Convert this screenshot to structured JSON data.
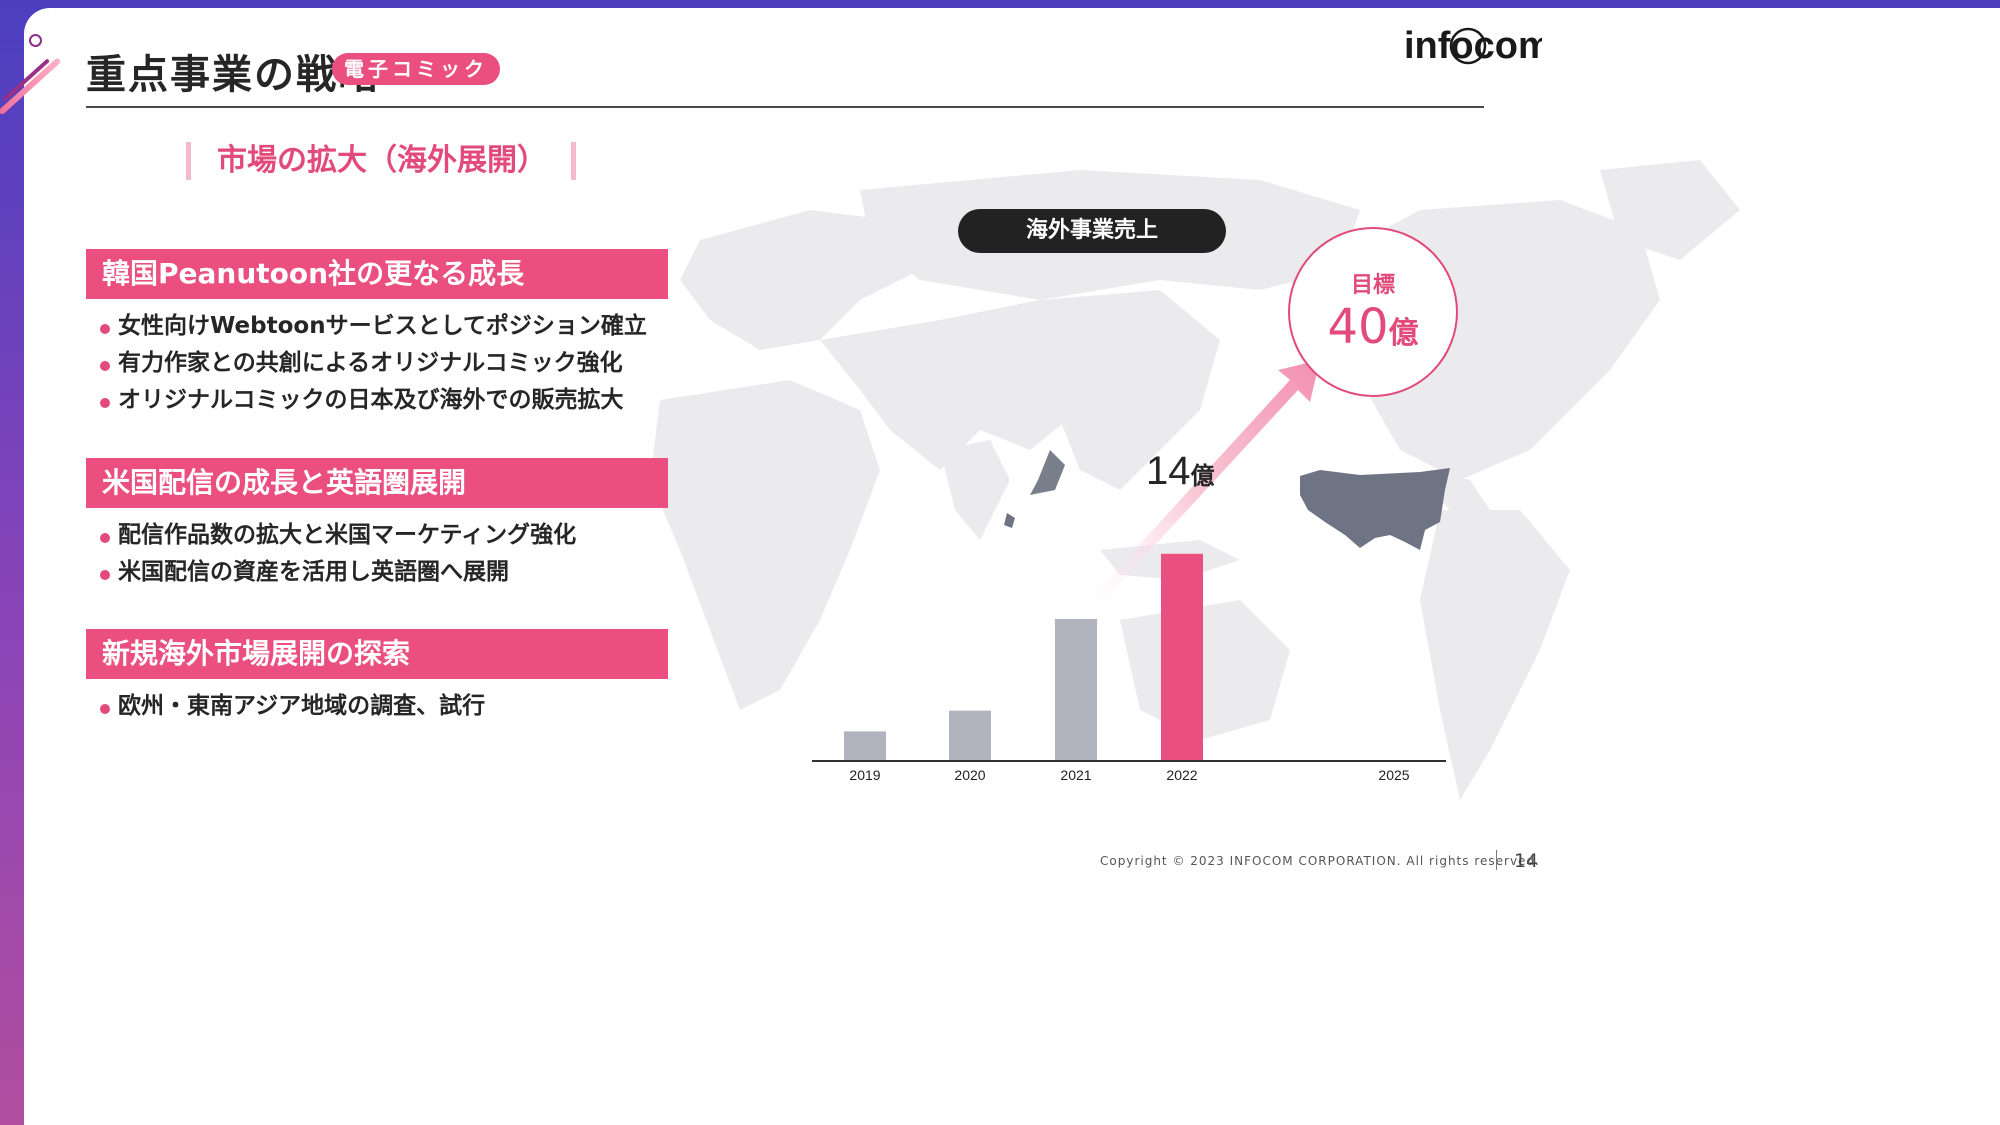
{
  "header": {
    "title": "重点事業の戦略",
    "category_badge": "電子コミック",
    "logo_text": "infocom"
  },
  "section_heading": "市場の拡大（海外展開）",
  "blocks": [
    {
      "heading": "韓国Peanutoon社の更なる成長",
      "bullets": [
        "女性向けWebtoonサービスとしてポジション確立",
        "有力作家との共創によるオリジナルコミック強化",
        "オリジナルコミックの日本及び海外での販売拡大"
      ]
    },
    {
      "heading": "米国配信の成長と英語圏展開",
      "bullets": [
        "配信作品数の拡大と米国マーケティング強化",
        "米国配信の資産を活用し英語圏へ展開"
      ]
    },
    {
      "heading": "新規海外市場展開の探索",
      "bullets": [
        "欧州・東南アジア地域の調査、試行"
      ]
    }
  ],
  "chart_data": {
    "type": "bar",
    "title": "海外事業売上",
    "categories": [
      "2019",
      "2020",
      "2021",
      "2022",
      "2025"
    ],
    "values": [
      2.0,
      3.4,
      9.6,
      14,
      null
    ],
    "unit": "億",
    "data_labels": [
      {
        "category": "2022",
        "value": "14",
        "unit": "億"
      }
    ],
    "target": {
      "category": "2025",
      "label": "目標",
      "value": "40",
      "unit": "億"
    },
    "ylim": [
      0,
      20
    ],
    "grid": false,
    "colors": {
      "past": "#b1b3be",
      "current": "#ea4f7f",
      "arrow": "#f5a3bd"
    }
  },
  "footer": {
    "copyright": "Copyright © 2023 INFOCOM CORPORATION. All rights reserved.",
    "page_number": "14"
  },
  "colors": {
    "accent": "#ea4f7f",
    "text": "#262626",
    "map": "#ebebee",
    "usa_highlight": "#6f7484"
  }
}
